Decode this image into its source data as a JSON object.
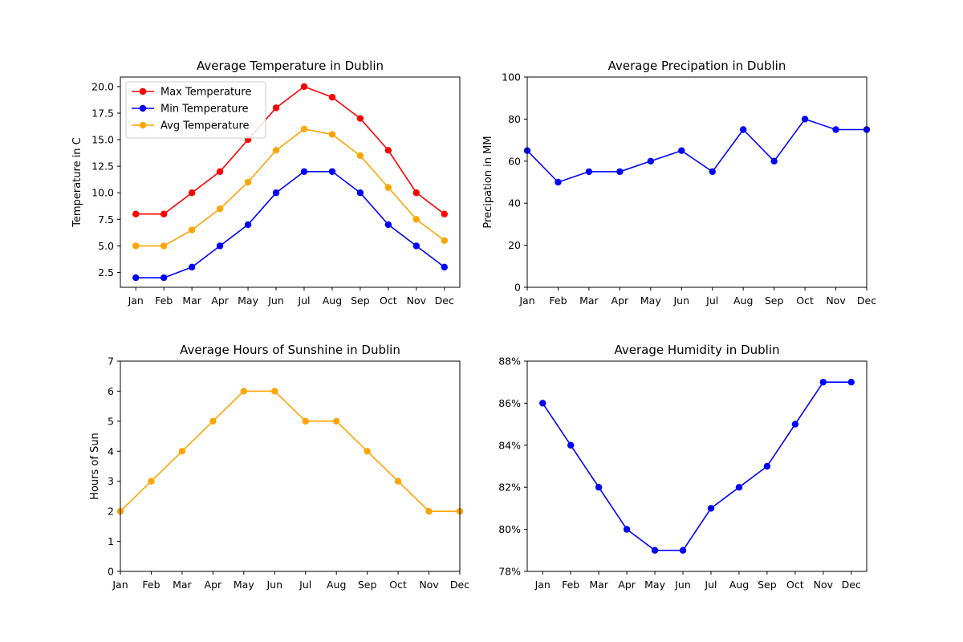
{
  "figure": {
    "charts_order": [
      "temperature",
      "precipitation",
      "sunshine",
      "humidity"
    ]
  },
  "chart_data": [
    {
      "id": "temperature",
      "type": "line",
      "title": "Average Temperature in Dublin",
      "xlabel": "",
      "ylabel": "Temperature in C",
      "categories": [
        "Jan",
        "Feb",
        "Mar",
        "Apr",
        "May",
        "Jun",
        "Jul",
        "Aug",
        "Sep",
        "Oct",
        "Nov",
        "Dec"
      ],
      "ylim": [
        1.1,
        20.9
      ],
      "yticks": [
        2.5,
        5.0,
        7.5,
        10.0,
        12.5,
        15.0,
        17.5,
        20.0
      ],
      "ytick_labels": [
        "2.5",
        "5.0",
        "7.5",
        "10.0",
        "12.5",
        "15.0",
        "17.5",
        "20.0"
      ],
      "x_padded": true,
      "legend": "top-left",
      "grid": false,
      "series": [
        {
          "name": "Max Temperature",
          "color": "#ff0000",
          "values": [
            8,
            8,
            10,
            12,
            15,
            18,
            20,
            19,
            17,
            14,
            10,
            8
          ]
        },
        {
          "name": "Min Temperature",
          "color": "#0000ff",
          "values": [
            2,
            2,
            3,
            5,
            7,
            10,
            12,
            12,
            10,
            7,
            5,
            3
          ]
        },
        {
          "name": "Avg Temperature",
          "color": "#ffa500",
          "values": [
            5,
            5,
            6.5,
            8.5,
            11,
            14,
            16,
            15.5,
            13.5,
            10.5,
            7.5,
            5.5
          ]
        }
      ]
    },
    {
      "id": "precipitation",
      "type": "line",
      "title": "Average Precipation in Dublin",
      "xlabel": "",
      "ylabel": "Precipation in MM",
      "categories": [
        "Jan",
        "Feb",
        "Mar",
        "Apr",
        "May",
        "Jun",
        "Jul",
        "Aug",
        "Sep",
        "Oct",
        "Nov",
        "Dec"
      ],
      "ylim": [
        0,
        100
      ],
      "yticks": [
        0,
        20,
        40,
        60,
        80,
        100
      ],
      "ytick_labels": [
        "0",
        "20",
        "40",
        "60",
        "80",
        "100"
      ],
      "x_padded": false,
      "grid": false,
      "series": [
        {
          "name": "",
          "color": "#0000ff",
          "values": [
            65,
            50,
            55,
            55,
            60,
            65,
            55,
            75,
            60,
            80,
            75,
            75
          ]
        }
      ]
    },
    {
      "id": "sunshine",
      "type": "line",
      "title": "Average Hours of Sunshine in Dublin",
      "xlabel": "",
      "ylabel": "Hours of Sun",
      "categories": [
        "Jan",
        "Feb",
        "Mar",
        "Apr",
        "May",
        "Jun",
        "Jul",
        "Aug",
        "Sep",
        "Oct",
        "Nov",
        "Dec"
      ],
      "ylim": [
        0,
        7
      ],
      "yticks": [
        0,
        1,
        2,
        3,
        4,
        5,
        6,
        7
      ],
      "ytick_labels": [
        "0",
        "1",
        "2",
        "3",
        "4",
        "5",
        "6",
        "7"
      ],
      "x_padded": false,
      "grid": false,
      "series": [
        {
          "name": "",
          "color": "#ffa500",
          "values": [
            2,
            3,
            4,
            5,
            6,
            6,
            5,
            5,
            4,
            3,
            2,
            2
          ]
        }
      ]
    },
    {
      "id": "humidity",
      "type": "line",
      "title": "Average Humidity in Dublin",
      "xlabel": "",
      "ylabel": "",
      "categories": [
        "Jan",
        "Feb",
        "Mar",
        "Apr",
        "May",
        "Jun",
        "Jul",
        "Aug",
        "Sep",
        "Oct",
        "Nov",
        "Dec"
      ],
      "ylim": [
        78,
        88
      ],
      "yticks": [
        78,
        80,
        82,
        84,
        86,
        88
      ],
      "ytick_labels": [
        "78%",
        "80%",
        "82%",
        "84%",
        "86%",
        "88%"
      ],
      "x_padded": true,
      "grid": false,
      "series": [
        {
          "name": "",
          "color": "#0000ff",
          "values": [
            86,
            84,
            82,
            80,
            79,
            79,
            81,
            82,
            83,
            85,
            87,
            87
          ]
        }
      ]
    }
  ]
}
